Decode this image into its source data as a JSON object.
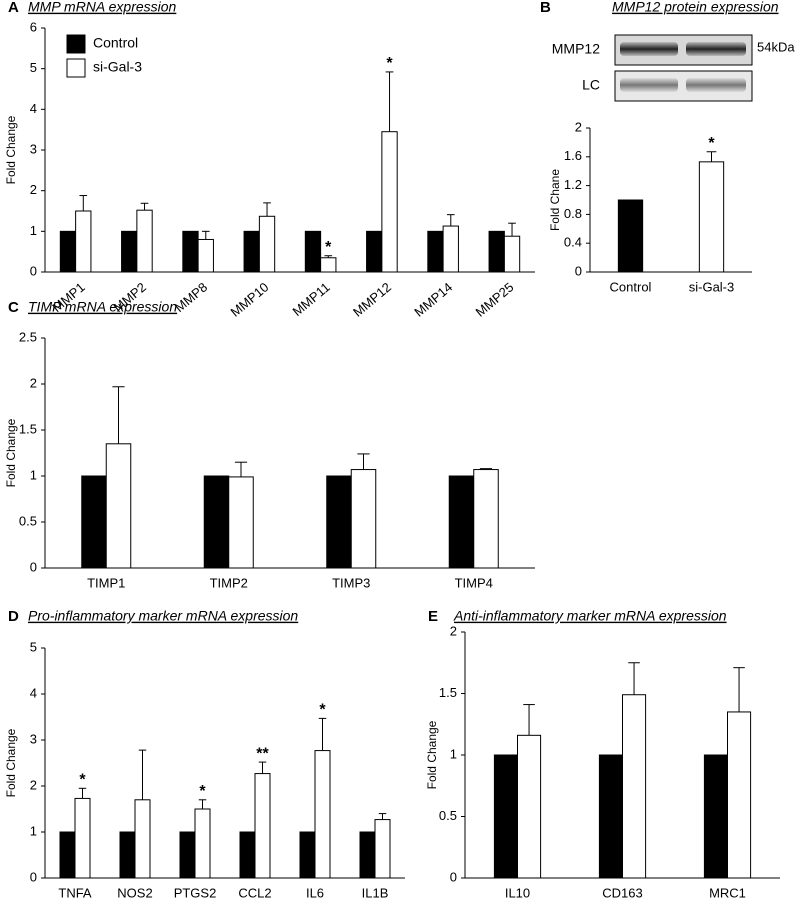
{
  "chart_data": [
    {
      "type": "bar",
      "panel": "A",
      "title": "MMP mRNA expression",
      "ylabel": "Fold Change",
      "categories": [
        "MMP1",
        "MMP2",
        "MMP8",
        "MMP10",
        "MMP11",
        "MMP12",
        "MMP14",
        "MMP25"
      ],
      "series": [
        {
          "name": "Control",
          "color": "#000000",
          "values": [
            1,
            1,
            1,
            1,
            1,
            1,
            1,
            1
          ]
        },
        {
          "name": "si-Gal-3",
          "color": "#ffffff",
          "values": [
            1.5,
            1.52,
            0.8,
            1.37,
            0.35,
            3.45,
            1.13,
            0.88
          ],
          "errors": [
            0.38,
            0.17,
            0.2,
            0.33,
            0.05,
            1.47,
            0.28,
            0.32
          ],
          "labels": [
            null,
            null,
            null,
            null,
            "*",
            "*",
            null,
            null
          ]
        }
      ],
      "ylim": [
        0,
        6
      ],
      "yticks": [
        0,
        1,
        2,
        3,
        4,
        5,
        6
      ],
      "legend": "upper left"
    },
    {
      "type": "bar",
      "panel": "B",
      "title": "MMP12 protein expression",
      "ylabel": "Fold Chane",
      "blot": {
        "bands": [
          "MMP12",
          "LC"
        ],
        "size": "54kDa"
      },
      "categories": [
        "Control",
        "si-Gal-3"
      ],
      "values": [
        1,
        1.53
      ],
      "colors": [
        "#000000",
        "#ffffff"
      ],
      "errors": [
        null,
        0.14
      ],
      "labels": [
        null,
        "*"
      ],
      "ylim": [
        0,
        2
      ],
      "yticks": [
        0,
        0.4,
        0.8,
        1.2,
        1.6,
        2
      ]
    },
    {
      "type": "bar",
      "panel": "C",
      "title": "TIMP mRNA expression",
      "ylabel": "Fold Change",
      "categories": [
        "TIMP1",
        "TIMP2",
        "TIMP3",
        "TIMP4"
      ],
      "series": [
        {
          "color": "#000000",
          "values": [
            1,
            1,
            1,
            1
          ]
        },
        {
          "color": "#ffffff",
          "values": [
            1.35,
            0.99,
            1.07,
            1.07
          ],
          "errors": [
            0.62,
            0.16,
            0.17,
            0.01
          ]
        }
      ],
      "ylim": [
        0,
        2.5
      ],
      "yticks": [
        0,
        0.5,
        1,
        1.5,
        2,
        2.5
      ]
    },
    {
      "type": "bar",
      "panel": "D",
      "title": "Pro-inflammatory marker mRNA expression",
      "ylabel": "Fold Change",
      "categories": [
        "TNFA",
        "NOS2",
        "PTGS2",
        "CCL2",
        "IL6",
        "IL1B"
      ],
      "series": [
        {
          "color": "#000000",
          "values": [
            1,
            1,
            1,
            1,
            1,
            1
          ]
        },
        {
          "color": "#ffffff",
          "values": [
            1.73,
            1.7,
            1.5,
            2.27,
            2.77,
            1.27
          ],
          "errors": [
            0.22,
            1.08,
            0.2,
            0.25,
            0.7,
            0.13
          ],
          "labels": [
            "*",
            null,
            "*",
            "**",
            "*",
            null
          ]
        }
      ],
      "ylim": [
        0,
        5
      ],
      "yticks": [
        0,
        1,
        2,
        3,
        4,
        5
      ]
    },
    {
      "type": "bar",
      "panel": "E",
      "title": "Anti-inflammatory marker mRNA expression",
      "ylabel": "Fold Change",
      "categories": [
        "IL10",
        "CD163",
        "MRC1"
      ],
      "series": [
        {
          "color": "#000000",
          "values": [
            1,
            1,
            1
          ]
        },
        {
          "color": "#ffffff",
          "values": [
            1.16,
            1.49,
            1.35
          ],
          "errors": [
            0.25,
            0.26,
            0.36
          ]
        }
      ],
      "ylim": [
        0,
        2
      ],
      "yticks": [
        0,
        0.5,
        1,
        1.5,
        2
      ]
    }
  ]
}
